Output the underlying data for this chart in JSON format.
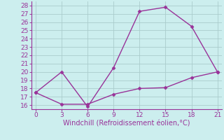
{
  "line1_x": [
    0,
    3,
    6,
    9,
    12,
    15,
    18,
    21
  ],
  "line1_y": [
    17.5,
    20.0,
    15.8,
    20.5,
    27.3,
    27.8,
    25.5,
    20.0
  ],
  "line2_x": [
    0,
    3,
    6,
    9,
    12,
    15,
    18,
    21
  ],
  "line2_y": [
    17.5,
    16.1,
    16.1,
    17.3,
    18.0,
    18.1,
    19.3,
    20.0
  ],
  "line_color": "#993399",
  "bg_color": "#cceeee",
  "grid_color": "#aacccc",
  "xlabel": "Windchill (Refroidissement éolien,°C)",
  "xlim": [
    -0.5,
    21.5
  ],
  "ylim": [
    15.5,
    28.5
  ],
  "xticks": [
    0,
    3,
    6,
    9,
    12,
    15,
    18,
    21
  ],
  "yticks": [
    16,
    17,
    18,
    19,
    20,
    21,
    22,
    23,
    24,
    25,
    26,
    27,
    28
  ],
  "marker": "D",
  "markersize": 2.5,
  "linewidth": 1.0,
  "xlabel_fontsize": 7,
  "tick_fontsize": 6.5
}
